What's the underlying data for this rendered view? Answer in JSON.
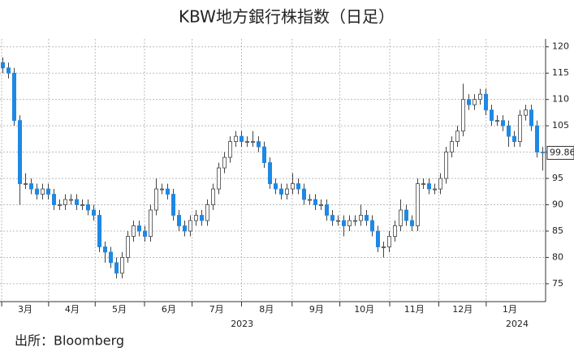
{
  "chart_data": {
    "type": "candlestick",
    "title": "KBW地方銀行株指数（日足）",
    "source": "出所：Bloomberg",
    "open": [
      117,
      116,
      115,
      106,
      94,
      94,
      93,
      92,
      93,
      92,
      90,
      90,
      91,
      91,
      90,
      90,
      89,
      88,
      82,
      81,
      79,
      77,
      80,
      84,
      86,
      85,
      84,
      89,
      93,
      93,
      92,
      88,
      86,
      85,
      87,
      88,
      87,
      90,
      93,
      97,
      99,
      102,
      103,
      102,
      102,
      102,
      101,
      98,
      94,
      93,
      92,
      93,
      94,
      93,
      91,
      91,
      90,
      90,
      88,
      87,
      87,
      86,
      87,
      87,
      88,
      87,
      85,
      82,
      82,
      84,
      86,
      89,
      87,
      86,
      94,
      94,
      93,
      93,
      95,
      100,
      102,
      104,
      110,
      109,
      110,
      111,
      108,
      106,
      106,
      105,
      103,
      102,
      107,
      108,
      105,
      100
    ],
    "high": [
      118,
      117,
      116,
      107,
      96,
      95,
      94,
      94,
      94,
      93,
      91,
      92,
      92,
      92,
      91,
      91,
      90,
      89,
      83,
      82,
      80,
      81,
      85,
      87,
      87,
      86,
      90,
      95,
      94,
      94,
      93,
      89,
      87,
      88,
      89,
      89,
      91,
      94,
      98,
      100,
      103,
      104,
      104,
      103,
      104,
      103,
      102,
      99,
      95,
      94,
      94,
      96,
      95,
      94,
      92,
      92,
      91,
      91,
      89,
      88,
      88,
      88,
      88,
      90,
      89,
      88,
      86,
      83,
      85,
      87,
      91,
      90,
      88,
      95,
      95,
      95,
      94,
      96,
      101,
      103,
      105,
      113,
      111,
      111,
      112,
      112,
      109,
      107,
      107,
      106,
      104,
      108,
      109,
      109,
      106,
      101
    ],
    "low": [
      115,
      114,
      105,
      90,
      93,
      92,
      91,
      91,
      91,
      89,
      89,
      89,
      90,
      89,
      89,
      88,
      87,
      81,
      79,
      78,
      76,
      76,
      79,
      83,
      84,
      83,
      83,
      88,
      92,
      91,
      87,
      85,
      84,
      84,
      86,
      86,
      86,
      89,
      92,
      96,
      98,
      101,
      101,
      101,
      101,
      100,
      97,
      93,
      92,
      91,
      91,
      92,
      92,
      90,
      90,
      89,
      89,
      87,
      86,
      86,
      84,
      85,
      86,
      86,
      86,
      84,
      81,
      80,
      81,
      83,
      85,
      86,
      85,
      85,
      93,
      92,
      92,
      92,
      94,
      99,
      101,
      103,
      108,
      108,
      109,
      107,
      105,
      105,
      104,
      101,
      101,
      101,
      106,
      104,
      99,
      96.5
    ],
    "close": [
      116,
      115,
      106,
      94,
      94,
      93,
      92,
      93,
      92,
      90,
      90,
      91,
      91,
      90,
      90,
      89,
      88,
      82,
      81,
      79,
      77,
      80,
      84,
      86,
      85,
      84,
      89,
      93,
      93,
      92,
      88,
      86,
      85,
      87,
      88,
      87,
      90,
      93,
      97,
      99,
      102,
      103,
      102,
      102,
      102,
      101,
      98,
      94,
      93,
      92,
      93,
      94,
      93,
      91,
      91,
      90,
      90,
      88,
      87,
      87,
      86,
      87,
      87,
      88,
      87,
      85,
      82,
      82,
      84,
      86,
      89,
      87,
      86,
      94,
      94,
      93,
      93,
      95,
      100,
      102,
      104,
      110,
      109,
      110,
      111,
      108,
      106,
      106,
      105,
      103,
      102,
      107,
      108,
      105,
      100,
      99.86
    ],
    "up_color": "#ffffff",
    "down_color": "#1e88e5",
    "xlim": [
      0,
      96
    ],
    "xticks": [
      {
        "value": 4.43,
        "label": "3月"
      },
      {
        "value": 12.7,
        "label": "4月"
      },
      {
        "value": 21,
        "label": "5月"
      },
      {
        "value": 29.7,
        "label": "6月"
      },
      {
        "value": 38.1,
        "label": "7月"
      },
      {
        "value": 46.9,
        "label": "8月"
      },
      {
        "value": 55.7,
        "label": "9月"
      },
      {
        "value": 64.1,
        "label": "10月"
      },
      {
        "value": 72.9,
        "label": "11月"
      },
      {
        "value": 81.4,
        "label": "12月"
      },
      {
        "value": 89.7,
        "label": "1月"
      }
    ],
    "year_ticks": [
      {
        "value": 42.6,
        "label": "2023"
      },
      {
        "value": 91,
        "label": "2024"
      }
    ],
    "ylim": [
      71.6,
      121.5
    ],
    "yticks": [
      75,
      80,
      85,
      90,
      95,
      100,
      105,
      110,
      115,
      120
    ],
    "grid": true
  }
}
